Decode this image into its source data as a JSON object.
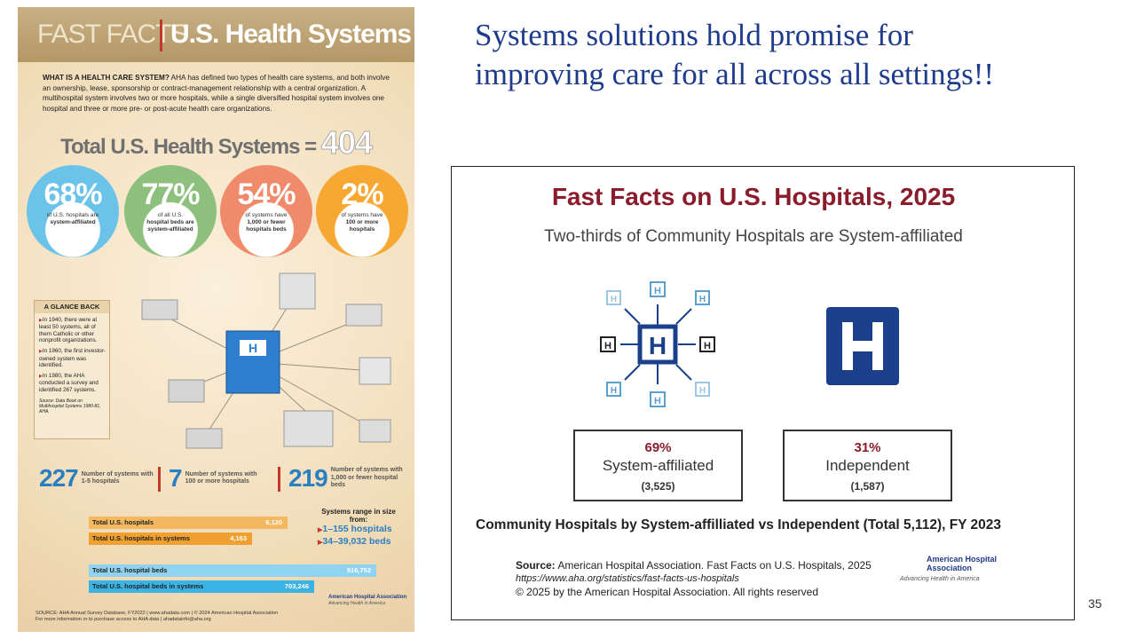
{
  "slide": {
    "title": "Systems solutions hold promise for improving care for all across all settings!!",
    "page_number": "35"
  },
  "infographic": {
    "header": {
      "left": "FAST FACTS",
      "right": "U.S. Health Systems"
    },
    "intro": {
      "lead": "WHAT IS A HEALTH CARE SYSTEM?",
      "text": "AHA has defined two types of health care systems, and both involve an ownership, lease, sponsorship or contract-management relationship with a central organization. A multihospital system involves two or more hospitals, while a single diversified hospital system involves one hospital and three or more pre- or post-acute health care organizations."
    },
    "total": {
      "label": "Total U.S. Health Systems =",
      "value": "404"
    },
    "circles": [
      {
        "value": "68%",
        "lines": [
          "of U.S. hospitals are",
          "system-affiliated"
        ]
      },
      {
        "value": "77%",
        "lines": [
          "of all U.S.",
          "hospital beds are",
          "system-affiliated"
        ]
      },
      {
        "value": "54%",
        "lines": [
          "of systems have",
          "1,000 or fewer",
          "hospitals beds"
        ]
      },
      {
        "value": "2%",
        "lines": [
          "of systems have",
          "100 or more",
          "hospitals"
        ]
      }
    ],
    "glance": {
      "title": "A GLANCE BACK",
      "items": [
        "In 1940, there were at least 50 systems, all of them Catholic or other nonprofit organizations.",
        "In 1960, the first investor-owned system was identified.",
        "In 1980, the AHA conducted a survey and identified 267 systems."
      ],
      "source": "Source: Data Book on Multihospital Systems 1980-81, AHA."
    },
    "counts": [
      {
        "value": "227",
        "text": "Number of systems with 1-5 hospitals"
      },
      {
        "value": "7",
        "text": "Number of systems with 100 or more hospitals"
      },
      {
        "value": "219",
        "text": "Number of systems with 1,000 or fewer hospital beds"
      }
    ],
    "bars": [
      {
        "label": "Total U.S. hospitals",
        "value": "6,120"
      },
      {
        "label": "Total U.S. hospitals in systems",
        "value": "4,163"
      },
      {
        "label": "Total U.S. hospital beds",
        "value": "916,752"
      },
      {
        "label": "Total U.S. hospital beds in systems",
        "value": "703,246"
      }
    ],
    "range": {
      "title": "Systems range in size from:",
      "items": [
        "1–155 hospitals",
        "34–39,032 beds"
      ]
    },
    "source": "SOURCE: AHA Annual Survey Database, FY2022 | www.ahadata.com | © 2024 American Hospital Association",
    "more_info": "For more information or to purchase access to AHA data | ahadatainfo@aha.org",
    "logo": {
      "name": "American Hospital Association",
      "tagline": "Advancing Health in America"
    }
  },
  "panel": {
    "title": "Fast Facts on U.S. Hospitals, 2025",
    "subtitle": "Two-thirds of Community Hospitals are System-affiliated",
    "boxes": [
      {
        "percent": "69%",
        "label": "System-affiliated",
        "count": "(3,525)"
      },
      {
        "percent": "31%",
        "label": "Independent",
        "count": "(1,587)"
      }
    ],
    "caption": "Community Hospitals by System-affilliated vs Independent (Total 5,112), FY 2023",
    "source": {
      "lead": "Source:",
      "text": "American Hospital Association.  Fast Facts on U.S. Hospitals, 2025",
      "url": "https://www.aha.org/statistics/fast-facts-us-hospitals",
      "copyright": "© 2025 by the American Hospital Association. All rights reserved"
    },
    "logo": {
      "name": "American Hospital Association",
      "tagline": "Advancing Health in America"
    }
  }
}
